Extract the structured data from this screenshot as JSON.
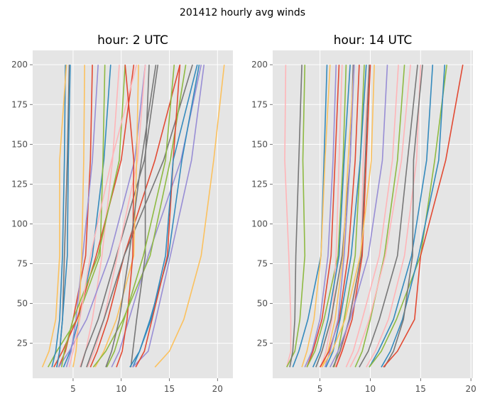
{
  "figure": {
    "suptitle": "201412 hourly avg winds"
  },
  "palette": [
    "#E24A33",
    "#348ABD",
    "#988ED5",
    "#777777",
    "#FBC15E",
    "#8EBA42",
    "#FFB5B8"
  ],
  "chart_data": [
    {
      "type": "line",
      "title": "hour: 2 UTC",
      "xlabel": "",
      "ylabel": "",
      "xlim": [
        0.8,
        21.6
      ],
      "ylim": [
        3,
        209
      ],
      "xticks": [
        "5",
        "10",
        "15",
        "20"
      ],
      "yticks": [
        "25",
        "50",
        "75",
        "100",
        "125",
        "150",
        "175",
        "200"
      ],
      "xtick_values": [
        5,
        10,
        15,
        20
      ],
      "ytick_values": [
        25,
        50,
        75,
        100,
        125,
        150,
        175,
        200
      ],
      "grid": true,
      "y_levels": [
        10,
        20,
        40,
        80,
        140,
        200
      ],
      "series": [
        {
          "color": "#E24A33",
          "x": [
            3.5,
            4.2,
            5.0,
            6.3,
            6.8,
            7.0
          ]
        },
        {
          "color": "#348ABD",
          "x": [
            4.0,
            4.7,
            5.6,
            7.0,
            8.2,
            8.9
          ]
        },
        {
          "color": "#988ED5",
          "x": [
            4.3,
            4.8,
            5.3,
            6.0,
            7.0,
            7.6
          ]
        },
        {
          "color": "#777777",
          "x": [
            3.3,
            3.6,
            3.9,
            4.1,
            4.4,
            4.6
          ]
        },
        {
          "color": "#FBC15E",
          "x": [
            5.0,
            5.3,
            5.6,
            5.9,
            6.1,
            6.2
          ]
        },
        {
          "color": "#8EBA42",
          "x": [
            2.4,
            3.3,
            5.4,
            7.8,
            8.1,
            8.3
          ]
        },
        {
          "color": "#FFB5B8",
          "x": [
            5.7,
            6.3,
            7.0,
            8.0,
            9.1,
            9.8
          ]
        },
        {
          "color": "#E24A33",
          "x": [
            3.0,
            3.9,
            5.4,
            7.4,
            10.0,
            11.3
          ]
        },
        {
          "color": "#348ABD",
          "x": [
            2.8,
            3.2,
            3.6,
            3.9,
            4.1,
            4.2
          ]
        },
        {
          "color": "#988ED5",
          "x": [
            3.5,
            4.6,
            6.4,
            8.8,
            11.4,
            12.5
          ]
        },
        {
          "color": "#777777",
          "x": [
            5.8,
            6.3,
            7.6,
            9.5,
            12.4,
            13.8
          ]
        },
        {
          "color": "#FBC15E",
          "x": [
            1.8,
            2.5,
            3.2,
            3.6,
            3.6,
            4.3
          ]
        },
        {
          "color": "#8EBA42",
          "x": [
            3.8,
            4.1,
            5.0,
            7.6,
            9.8,
            10.4
          ]
        },
        {
          "color": "#FFB5B8",
          "x": [
            6.5,
            7.2,
            8.2,
            9.6,
            11.7,
            12.5
          ]
        },
        {
          "color": "#E24A33",
          "x": [
            6.8,
            7.5,
            8.6,
            10.3,
            13.5,
            16.1
          ]
        },
        {
          "color": "#348ABD",
          "x": [
            3.3,
            3.6,
            3.9,
            4.4,
            4.5,
            4.7
          ]
        },
        {
          "color": "#988ED5",
          "x": [
            9.0,
            9.8,
            10.8,
            12.8,
            16.2,
            18.3
          ]
        },
        {
          "color": "#777777",
          "x": [
            6.4,
            7.0,
            8.2,
            10.3,
            14.4,
            17.4
          ]
        },
        {
          "color": "#FBC15E",
          "x": [
            7.3,
            8.2,
            9.5,
            11.3,
            11.6,
            11.8
          ]
        },
        {
          "color": "#8EBA42",
          "x": [
            7.1,
            8.4,
            10.2,
            13.0,
            15.1,
            16.7
          ]
        },
        {
          "color": "#FFB5B8",
          "x": [
            4.6,
            5.0,
            5.7,
            6.8,
            9.0,
            11.6
          ]
        },
        {
          "color": "#E24A33",
          "x": [
            9.5,
            10.1,
            10.6,
            11.2,
            11.3,
            10.4
          ]
        },
        {
          "color": "#348ABD",
          "x": [
            11.2,
            11.9,
            13.0,
            14.9,
            16.3,
            18.1
          ]
        },
        {
          "color": "#988ED5",
          "x": [
            11.2,
            12.8,
            13.6,
            15.1,
            17.3,
            18.6
          ]
        },
        {
          "color": "#777777",
          "x": [
            11.0,
            11.2,
            11.6,
            12.5,
            12.5,
            12.9
          ]
        },
        {
          "color": "#FBC15E",
          "x": [
            13.5,
            15.0,
            16.5,
            18.3,
            19.6,
            20.7
          ]
        },
        {
          "color": "#8EBA42",
          "x": [
            8.5,
            9.3,
            10.3,
            12.3,
            14.6,
            15.5
          ]
        },
        {
          "color": "#E24A33",
          "x": [
            11.5,
            12.4,
            13.2,
            14.8,
            15.4,
            16.1
          ]
        },
        {
          "color": "#348ABD",
          "x": [
            10.9,
            11.9,
            13.1,
            14.6,
            15.4,
            17.9
          ]
        },
        {
          "color": "#777777",
          "x": [
            8.4,
            9.0,
            9.8,
            10.8,
            12.1,
            13.6
          ]
        }
      ]
    },
    {
      "type": "line",
      "title": "hour: 14 UTC",
      "xlabel": "",
      "ylabel": "",
      "xlim": [
        0.3,
        20.2
      ],
      "ylim": [
        3,
        209
      ],
      "xticks": [
        "5",
        "10",
        "15",
        "20"
      ],
      "yticks": [
        "25",
        "50",
        "75",
        "100",
        "125",
        "150",
        "175",
        "200"
      ],
      "xtick_values": [
        5,
        10,
        15,
        20
      ],
      "ytick_values": [
        25,
        50,
        75,
        100,
        125,
        150,
        175,
        200
      ],
      "grid": true,
      "y_levels": [
        10,
        20,
        40,
        80,
        140,
        200
      ],
      "series": [
        {
          "color": "#FFB5B8",
          "x": [
            1.7,
            2.1,
            2.1,
            1.9,
            1.5,
            1.6
          ]
        },
        {
          "color": "#8EBA42",
          "x": [
            1.7,
            2.5,
            3.0,
            3.5,
            3.3,
            3.5
          ]
        },
        {
          "color": "#777777",
          "x": [
            2.0,
            2.3,
            2.5,
            2.6,
            2.9,
            3.2
          ]
        },
        {
          "color": "#348ABD",
          "x": [
            2.3,
            2.9,
            3.8,
            5.1,
            5.4,
            5.7
          ]
        },
        {
          "color": "#FBC15E",
          "x": [
            3.2,
            3.7,
            4.4,
            5.1,
            5.5,
            6.0
          ]
        },
        {
          "color": "#988ED5",
          "x": [
            3.5,
            4.2,
            5.0,
            5.8,
            6.3,
            6.6
          ]
        },
        {
          "color": "#E24A33",
          "x": [
            3.7,
            4.3,
            5.2,
            6.1,
            6.5,
            6.9
          ]
        },
        {
          "color": "#8EBA42",
          "x": [
            3.7,
            4.5,
            5.4,
            6.8,
            7.3,
            7.6
          ]
        },
        {
          "color": "#FFB5B8",
          "x": [
            5.1,
            5.6,
            6.2,
            6.6,
            6.9,
            7.2
          ]
        },
        {
          "color": "#348ABD",
          "x": [
            4.3,
            5.0,
            5.8,
            6.9,
            7.4,
            8.0
          ]
        },
        {
          "color": "#777777",
          "x": [
            4.6,
            5.2,
            6.1,
            7.2,
            8.0,
            8.3
          ]
        },
        {
          "color": "#FBC15E",
          "x": [
            5.2,
            5.8,
            6.5,
            7.3,
            7.8,
            8.4
          ]
        },
        {
          "color": "#E24A33",
          "x": [
            5.0,
            5.9,
            6.9,
            7.8,
            8.5,
            8.9
          ]
        },
        {
          "color": "#988ED5",
          "x": [
            5.5,
            6.0,
            6.8,
            7.4,
            8.0,
            8.4
          ]
        },
        {
          "color": "#8EBA42",
          "x": [
            6.4,
            6.8,
            7.4,
            8.5,
            9.0,
            9.4
          ]
        },
        {
          "color": "#FFB5B8",
          "x": [
            6.5,
            7.1,
            8.0,
            9.1,
            9.3,
            9.9
          ]
        },
        {
          "color": "#348ABD",
          "x": [
            5.6,
            6.3,
            7.0,
            8.1,
            9.0,
            9.6
          ]
        },
        {
          "color": "#777777",
          "x": [
            6.3,
            7.0,
            7.9,
            9.1,
            9.5,
            9.9
          ]
        },
        {
          "color": "#E24A33",
          "x": [
            6.6,
            7.2,
            8.2,
            9.2,
            9.6,
            10.0
          ]
        },
        {
          "color": "#988ED5",
          "x": [
            6.0,
            6.8,
            8.0,
            9.8,
            11.2,
            11.7
          ]
        },
        {
          "color": "#FBC15E",
          "x": [
            5.2,
            6.2,
            7.5,
            9.0,
            10.1,
            10.4
          ]
        },
        {
          "color": "#FFB5B8",
          "x": [
            7.6,
            8.3,
            9.2,
            10.9,
            12.2,
            12.8
          ]
        },
        {
          "color": "#8EBA42",
          "x": [
            8.5,
            9.2,
            10.0,
            11.4,
            12.7,
            13.4
          ]
        },
        {
          "color": "#FFB5B8",
          "x": [
            8.0,
            8.8,
            9.9,
            11.5,
            13.1,
            14.0
          ]
        },
        {
          "color": "#777777",
          "x": [
            8.9,
            9.8,
            10.9,
            12.7,
            13.7,
            14.7
          ]
        },
        {
          "color": "#348ABD",
          "x": [
            9.9,
            10.8,
            12.3,
            14.1,
            15.6,
            16.2
          ]
        },
        {
          "color": "#FFB5B8",
          "x": [
            9.6,
            10.5,
            11.8,
            13.4,
            14.6,
            15.0
          ]
        },
        {
          "color": "#8EBA42",
          "x": [
            9.9,
            11.1,
            12.6,
            15.0,
            16.4,
            17.6
          ]
        },
        {
          "color": "#348ABD",
          "x": [
            11.1,
            12.0,
            13.2,
            14.8,
            16.8,
            17.4
          ]
        },
        {
          "color": "#777777",
          "x": [
            11.4,
            12.3,
            13.3,
            14.2,
            14.3,
            15.2
          ]
        },
        {
          "color": "#E24A33",
          "x": [
            11.3,
            12.7,
            14.4,
            15.0,
            17.5,
            19.2
          ]
        }
      ]
    }
  ]
}
